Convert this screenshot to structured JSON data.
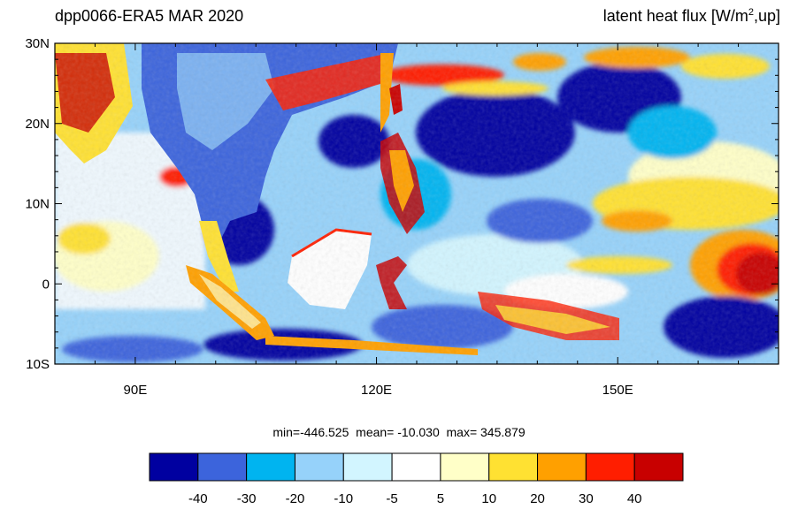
{
  "title_left": "dpp0066-ERA5  MAR 2020",
  "title_right": {
    "prefix": "latent heat flux [W/m",
    "sup": "2",
    "suffix": ",up]"
  },
  "stats_text": "min=-446.525  mean= -10.030  max= 345.879",
  "map": {
    "lat_range": [
      -10,
      30
    ],
    "lon_range": [
      80,
      170
    ],
    "lat_ticks": [
      {
        "value": 30,
        "label": "30N"
      },
      {
        "value": 20,
        "label": "20N"
      },
      {
        "value": 10,
        "label": "10N"
      },
      {
        "value": 0,
        "label": "0"
      },
      {
        "value": -10,
        "label": "10S"
      }
    ],
    "lon_ticks": [
      {
        "value": 90,
        "label": "90E"
      },
      {
        "value": 120,
        "label": "120E"
      },
      {
        "value": 150,
        "label": "150E"
      }
    ]
  },
  "colorbar": {
    "colors": [
      "#0000a0",
      "#3c64dc",
      "#00b4f0",
      "#96d2fa",
      "#d2f5ff",
      "#ffffff",
      "#ffffc8",
      "#ffe132",
      "#ffa000",
      "#ff1e00",
      "#c80000"
    ],
    "labels": [
      "-40",
      "-30",
      "-20",
      "-10",
      "-5",
      "5",
      "10",
      "20",
      "30",
      "40"
    ]
  }
}
